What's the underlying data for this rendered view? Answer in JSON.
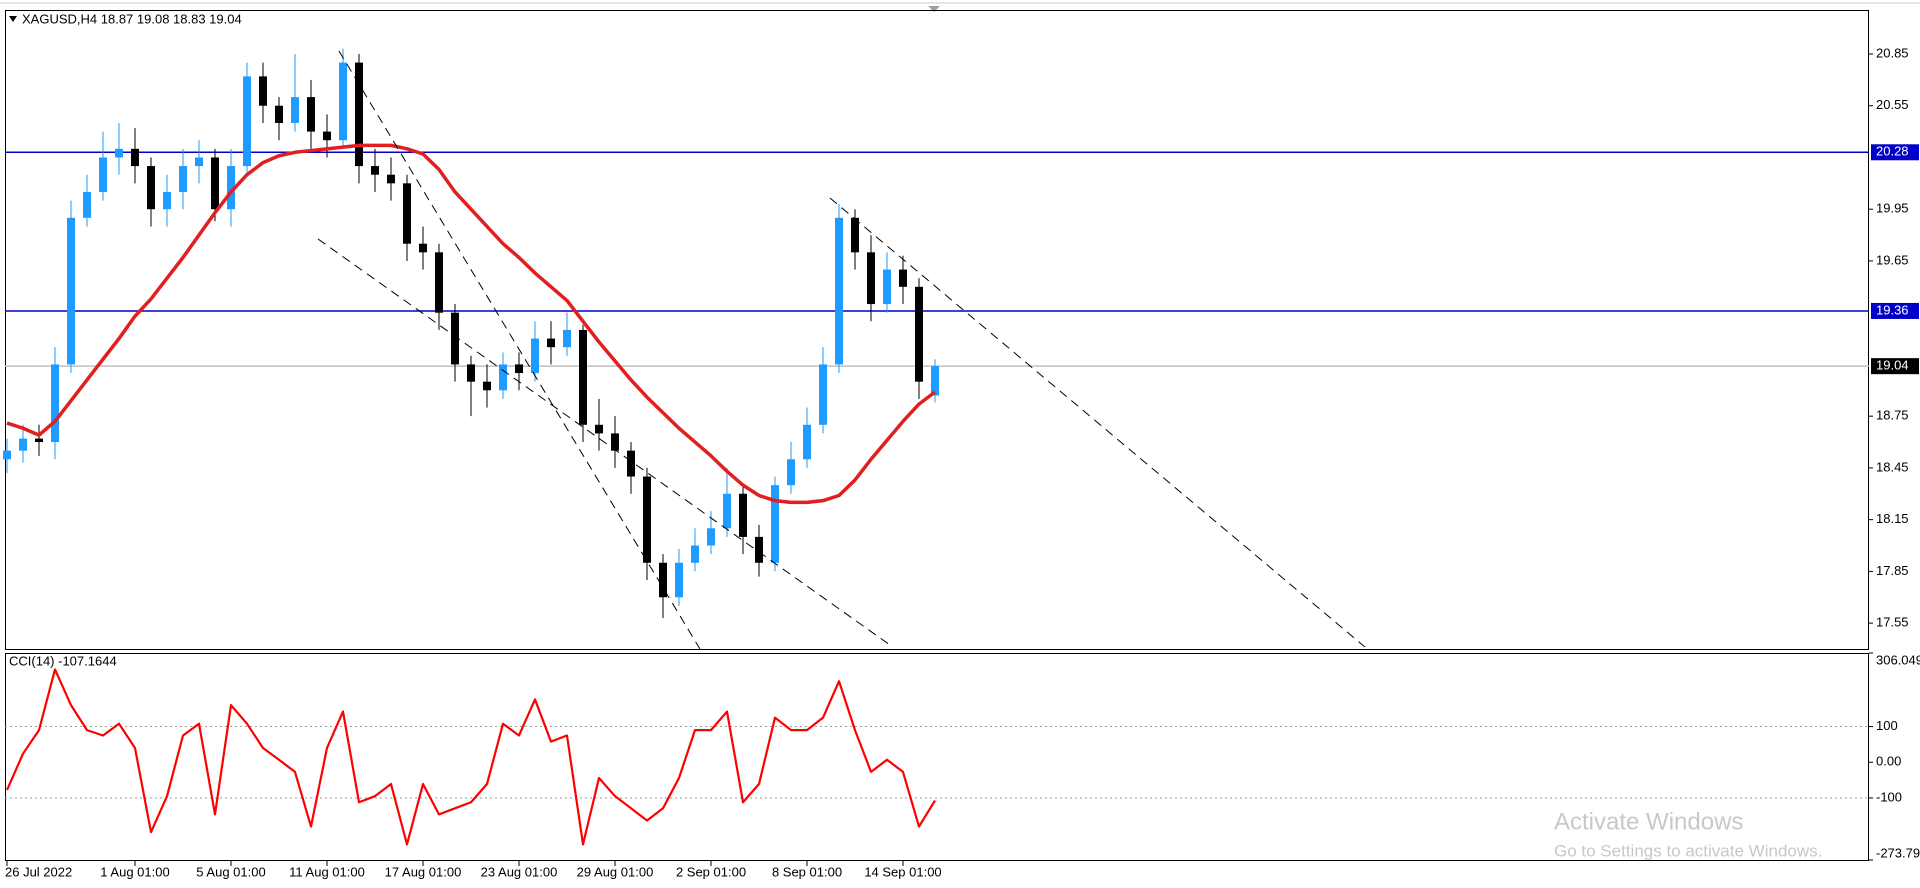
{
  "chart_data": [
    {
      "type": "candlestick",
      "title": "XAGUSD,H4  18.87 19.08 18.83 19.04",
      "categories": [
        "26 Jul 2022",
        null,
        null,
        null,
        null,
        null,
        null,
        null,
        "1 Aug 01:00",
        null,
        null,
        null,
        null,
        null,
        "5 Aug 01:00",
        null,
        null,
        null,
        null,
        null,
        "11 Aug 01:00",
        null,
        null,
        null,
        null,
        null,
        "17 Aug 01:00",
        null,
        null,
        null,
        null,
        null,
        "23 Aug 01:00",
        null,
        null,
        null,
        null,
        null,
        "29 Aug 01:00",
        null,
        null,
        null,
        null,
        null,
        "2 Sep 01:00",
        null,
        null,
        null,
        null,
        null,
        "8 Sep 01:00",
        null,
        null,
        null,
        null,
        null,
        "14 Sep 01:00",
        null,
        null
      ],
      "open": [
        18.5,
        18.55,
        18.62,
        18.6,
        19.05,
        19.9,
        20.05,
        20.25,
        20.3,
        20.2,
        19.95,
        20.05,
        20.2,
        20.25,
        19.95,
        20.2,
        20.72,
        20.55,
        20.45,
        20.6,
        20.4,
        20.35,
        20.8,
        20.2,
        20.15,
        20.1,
        19.75,
        19.7,
        19.35,
        19.05,
        18.95,
        18.9,
        19.05,
        19.0,
        19.2,
        19.15,
        19.25,
        18.7,
        18.65,
        18.55,
        18.4,
        17.9,
        17.7,
        17.9,
        18.0,
        18.1,
        18.3,
        18.05,
        17.9,
        18.35,
        18.5,
        18.7,
        19.05,
        19.9,
        19.7,
        19.4,
        19.6,
        19.5,
        18.87
      ],
      "high": [
        18.62,
        18.7,
        18.7,
        19.15,
        20.0,
        20.15,
        20.4,
        20.45,
        20.42,
        20.25,
        20.15,
        20.3,
        20.35,
        20.3,
        20.3,
        20.8,
        20.8,
        20.6,
        20.85,
        20.7,
        20.5,
        20.88,
        20.85,
        20.3,
        20.25,
        20.15,
        19.85,
        19.75,
        19.4,
        19.1,
        19.05,
        19.12,
        19.12,
        19.3,
        19.3,
        19.35,
        19.28,
        18.85,
        18.75,
        18.6,
        18.45,
        17.95,
        17.98,
        18.1,
        18.2,
        18.45,
        18.35,
        18.12,
        18.4,
        18.6,
        18.8,
        19.15,
        19.98,
        19.95,
        19.8,
        19.7,
        19.68,
        19.55,
        19.08
      ],
      "low": [
        18.42,
        18.48,
        18.52,
        18.5,
        19.0,
        19.85,
        20.0,
        20.15,
        20.1,
        19.85,
        19.85,
        19.95,
        20.1,
        19.88,
        19.85,
        20.15,
        20.45,
        20.35,
        20.4,
        20.3,
        20.25,
        20.3,
        20.1,
        20.05,
        20.0,
        19.65,
        19.6,
        19.25,
        18.95,
        18.75,
        18.8,
        18.85,
        18.9,
        18.95,
        19.05,
        19.1,
        18.6,
        18.55,
        18.45,
        18.3,
        17.8,
        17.58,
        17.65,
        17.85,
        17.95,
        18.05,
        17.95,
        17.82,
        17.85,
        18.3,
        18.45,
        18.65,
        19.0,
        19.6,
        19.3,
        19.35,
        19.4,
        18.85,
        18.83
      ],
      "close": [
        18.55,
        18.62,
        18.6,
        19.05,
        19.9,
        20.05,
        20.25,
        20.3,
        20.2,
        19.95,
        20.05,
        20.2,
        20.25,
        19.95,
        20.2,
        20.72,
        20.55,
        20.45,
        20.6,
        20.4,
        20.35,
        20.8,
        20.2,
        20.15,
        20.1,
        19.75,
        19.7,
        19.35,
        19.05,
        18.95,
        18.9,
        19.05,
        19.0,
        19.2,
        19.15,
        19.25,
        18.7,
        18.65,
        18.55,
        18.4,
        17.9,
        17.7,
        17.9,
        18.0,
        18.1,
        18.3,
        18.05,
        17.9,
        18.35,
        18.5,
        18.7,
        19.05,
        19.9,
        19.7,
        19.4,
        19.6,
        19.5,
        18.95,
        19.04
      ],
      "bull_color": "#1e9bff",
      "bear_color": "#000000",
      "moving_average": {
        "color": "#e31e1e",
        "values": [
          18.71,
          18.68,
          18.64,
          18.72,
          18.84,
          18.96,
          19.08,
          19.2,
          19.33,
          19.43,
          19.55,
          19.67,
          19.8,
          19.93,
          20.05,
          20.15,
          20.22,
          20.26,
          20.28,
          20.29,
          20.3,
          20.31,
          20.32,
          20.32,
          20.32,
          20.3,
          20.27,
          20.18,
          20.05,
          19.95,
          19.85,
          19.75,
          19.67,
          19.58,
          19.5,
          19.42,
          19.3,
          19.18,
          19.07,
          18.96,
          18.86,
          18.77,
          18.68,
          18.6,
          18.52,
          18.43,
          18.35,
          18.29,
          18.26,
          18.25,
          18.25,
          18.26,
          18.29,
          18.38,
          18.5,
          18.61,
          18.72,
          18.82,
          18.89
        ]
      },
      "levels": [
        {
          "value": 20.28,
          "color": "#0000c8"
        },
        {
          "value": 19.36,
          "color": "#0000c8"
        },
        {
          "value": 19.04,
          "color": "#c0c0c0"
        }
      ],
      "ylim": [
        17.4,
        21.105
      ],
      "yticks": [
        20.85,
        20.55,
        19.95,
        19.65,
        18.75,
        18.45,
        18.15,
        17.85,
        17.55
      ]
    },
    {
      "type": "line",
      "title": "CCI(14) -107.1644",
      "color": "#ff0000",
      "values": [
        -78,
        24,
        90,
        260,
        160,
        90,
        75,
        108,
        40,
        -196,
        -95,
        75,
        108,
        -146,
        160,
        108,
        40,
        7,
        -27,
        -180,
        40,
        142,
        -112,
        -95,
        -61,
        -230,
        -61,
        -146,
        -129,
        -112,
        -61,
        108,
        75,
        176,
        58,
        75,
        -230,
        -44,
        -95,
        -129,
        -163,
        -129,
        -44,
        90,
        90,
        142,
        -112,
        -61,
        125,
        90,
        90,
        125,
        227,
        90,
        -27,
        7,
        -27,
        -180,
        -107.1644
      ],
      "levels": [
        100,
        -100
      ],
      "ylim": [
        -273.796,
        306.049
      ],
      "yticks": [
        306.049,
        100,
        {
          "value": 0,
          "label": "0.00"
        },
        -100,
        -273.796
      ]
    }
  ],
  "watermark": {
    "title": "Activate Windows",
    "subtitle": "Go to Settings to activate Windows."
  }
}
